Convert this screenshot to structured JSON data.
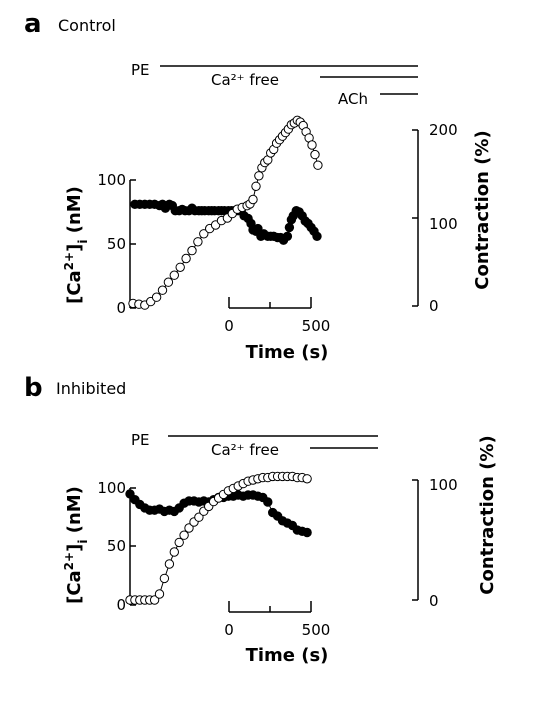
{
  "chart_data": [
    {
      "type": "scatter",
      "panel": "a",
      "panel_label": "Control",
      "treatments": [
        {
          "name": "PE",
          "start_min": 0
        },
        {
          "name": "Ca²⁺ free"
        },
        {
          "name": "ACh"
        }
      ],
      "xlabel": "Time (s)",
      "xticks_labels": [
        "0",
        "500"
      ],
      "left_axis": {
        "label": "[Ca²⁺]i (nM)",
        "ticks": [
          "0",
          "50",
          "100"
        ]
      },
      "right_axis": {
        "label": "Contraction (%)",
        "ticks": [
          "0",
          "100",
          "200"
        ]
      },
      "series": [
        {
          "marker": "filled-circle",
          "axis": "left",
          "x": [
            0.5,
            1.0,
            1.5,
            2.0,
            2.5,
            3.0,
            3.3,
            3.6,
            4.0,
            4.3,
            4.6,
            5.0,
            5.3,
            5.6,
            6.0,
            6.3,
            6.6,
            7.0,
            7.3,
            7.6,
            8.0,
            8.3,
            8.6,
            9.0,
            9.3,
            9.6,
            10.0,
            10.3,
            10.6,
            11.0,
            11.3,
            11.6,
            12.0,
            12.3,
            12.5,
            12.8,
            13.0,
            13.3,
            13.6,
            14.0,
            14.3,
            14.6,
            15.0,
            15.3,
            15.6,
            16.0,
            16.2,
            16.4,
            16.6,
            16.9,
            17.2,
            17.5,
            17.8,
            18.1,
            18.4,
            18.7,
            19.0
          ],
          "y": [
            81,
            81,
            81,
            81,
            81,
            80,
            81,
            78,
            81,
            80,
            76,
            76,
            77,
            76,
            76,
            78,
            76,
            76,
            76,
            76,
            76,
            76,
            76,
            76,
            76,
            76,
            76,
            76,
            76,
            76,
            76,
            72,
            70,
            66,
            61,
            60,
            62,
            56,
            58,
            56,
            56,
            56,
            55,
            55,
            53,
            56,
            63,
            69,
            72,
            76,
            75,
            72,
            68,
            66,
            63,
            60,
            56
          ]
        },
        {
          "marker": "open-circle",
          "axis": "right",
          "x": [
            0.3,
            0.9,
            1.5,
            2.1,
            2.7,
            3.3,
            3.9,
            4.5,
            5.1,
            5.7,
            6.3,
            6.9,
            7.5,
            8.1,
            8.7,
            9.3,
            9.9,
            10.4,
            10.9,
            11.4,
            11.9,
            12.2,
            12.5,
            12.8,
            13.1,
            13.4,
            13.7,
            14.0,
            14.3,
            14.6,
            14.9,
            15.2,
            15.5,
            15.8,
            16.1,
            16.4,
            16.7,
            17.0,
            17.3,
            17.6,
            17.9,
            18.2,
            18.5,
            18.8,
            19.1
          ],
          "y": [
            3,
            2,
            1,
            5,
            10,
            18,
            27,
            35,
            44,
            54,
            63,
            73,
            82,
            88,
            92,
            97,
            100,
            105,
            110,
            112,
            114,
            116,
            121,
            136,
            148,
            157,
            163,
            166,
            174,
            178,
            185,
            189,
            193,
            197,
            201,
            206,
            208,
            211,
            209,
            205,
            198,
            191,
            183,
            172,
            160
          ]
        }
      ]
    },
    {
      "type": "scatter",
      "panel": "b",
      "panel_label": "Inhibited",
      "treatments": [
        {
          "name": "PE"
        },
        {
          "name": "Ca²⁺ free"
        }
      ],
      "xlabel": "Time (s)",
      "xticks_labels": [
        "0",
        "500"
      ],
      "left_axis": {
        "label": "[Ca²⁺]i (nM)",
        "ticks": [
          "0",
          "50",
          "100"
        ]
      },
      "right_axis": {
        "label": "Contraction (%)",
        "ticks": [
          "0",
          "100"
        ]
      },
      "series": [
        {
          "marker": "filled-circle",
          "axis": "left",
          "x": [
            0.0,
            0.5,
            1.0,
            1.5,
            2.0,
            2.5,
            3.0,
            3.5,
            4.0,
            4.5,
            5.0,
            5.5,
            6.0,
            6.5,
            7.0,
            7.5,
            8.0,
            8.5,
            9.0,
            9.5,
            10.0,
            10.5,
            11.0,
            11.5,
            12.0,
            12.5,
            13.0,
            13.5,
            14.0,
            14.5,
            15.0,
            15.5,
            16.0,
            16.5,
            17.0,
            17.5,
            18.0
          ],
          "y": [
            95,
            90,
            86,
            83,
            81,
            81,
            82,
            80,
            81,
            80,
            83,
            87,
            89,
            89,
            88,
            89,
            88,
            90,
            92,
            92,
            93,
            93,
            94,
            93,
            94,
            94,
            93,
            92,
            88,
            79,
            76,
            72,
            70,
            68,
            64,
            63,
            62
          ]
        },
        {
          "marker": "open-circle",
          "axis": "right",
          "x": [
            0.0,
            0.5,
            1.0,
            1.5,
            2.0,
            2.5,
            3.0,
            3.5,
            4.0,
            4.5,
            5.0,
            5.5,
            6.0,
            6.5,
            7.0,
            7.5,
            8.0,
            8.5,
            9.0,
            9.5,
            10.0,
            10.5,
            11.0,
            11.5,
            12.0,
            12.5,
            13.0,
            13.5,
            14.0,
            14.5,
            15.0,
            15.5,
            16.0,
            16.5,
            17.0,
            17.5,
            18.0
          ],
          "y": [
            0,
            0,
            0,
            0,
            0,
            0,
            5,
            18,
            30,
            40,
            48,
            54,
            60,
            65,
            69,
            74,
            78,
            82,
            85,
            88,
            91,
            93,
            95,
            97,
            99,
            100,
            101,
            102,
            102,
            103,
            103,
            103,
            103,
            103,
            102,
            102,
            101
          ]
        }
      ]
    }
  ]
}
